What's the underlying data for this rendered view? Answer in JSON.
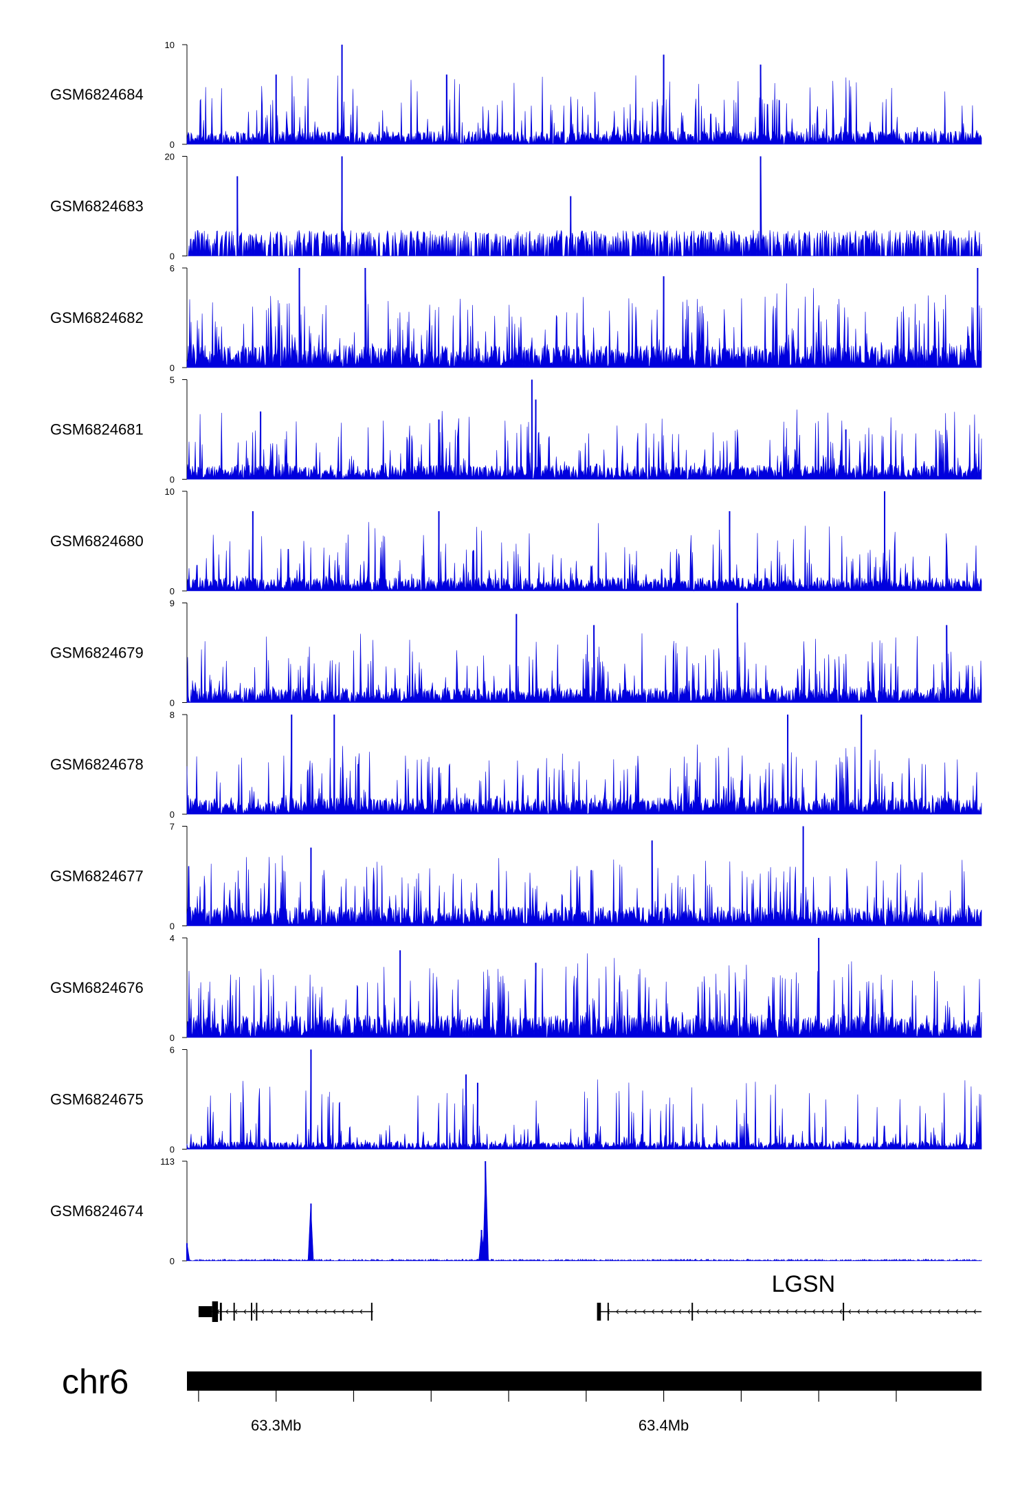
{
  "chart_data": {
    "type": "area",
    "chromosome": "chr6",
    "x_range_mb": [
      63.277,
      63.482
    ],
    "colors": {
      "signal": "#0000dd",
      "gene": "#000000",
      "ideogram": "#000000"
    },
    "tracks": [
      {
        "name": "GSM6824684",
        "ymax": 10,
        "baseline": 0,
        "background": 1.5,
        "peaks": [
          [
            63.3,
            7
          ],
          [
            63.317,
            10
          ],
          [
            63.4,
            9
          ],
          [
            63.425,
            8
          ],
          [
            63.344,
            7
          ]
        ]
      },
      {
        "name": "GSM6824683",
        "ymax": 20,
        "baseline": 0,
        "background": 4,
        "peaks": [
          [
            63.29,
            16
          ],
          [
            63.317,
            20
          ],
          [
            63.425,
            20
          ],
          [
            63.376,
            12
          ]
        ]
      },
      {
        "name": "GSM6824682",
        "ymax": 6,
        "baseline": 0,
        "background": 1.5,
        "peaks": [
          [
            63.306,
            6
          ],
          [
            63.323,
            6
          ],
          [
            63.4,
            5.5
          ],
          [
            63.481,
            6
          ]
        ]
      },
      {
        "name": "GSM6824681",
        "ymax": 5,
        "baseline": 0,
        "background": 0.8,
        "peaks": [
          [
            63.296,
            3.4
          ],
          [
            63.342,
            3
          ],
          [
            63.367,
            4
          ],
          [
            63.366,
            5
          ],
          [
            63.447,
            2.5
          ]
        ]
      },
      {
        "name": "GSM6824680",
        "ymax": 10,
        "baseline": 0,
        "background": 1.5,
        "peaks": [
          [
            63.294,
            8
          ],
          [
            63.342,
            8
          ],
          [
            63.417,
            8
          ],
          [
            63.457,
            10
          ]
        ]
      },
      {
        "name": "GSM6824679",
        "ymax": 9,
        "baseline": 0,
        "background": 1.5,
        "peaks": [
          [
            63.362,
            8
          ],
          [
            63.419,
            9
          ],
          [
            63.382,
            7
          ],
          [
            63.473,
            7
          ]
        ]
      },
      {
        "name": "GSM6824678",
        "ymax": 8,
        "baseline": 0,
        "background": 1.5,
        "peaks": [
          [
            63.304,
            8
          ],
          [
            63.315,
            8
          ],
          [
            63.432,
            8
          ],
          [
            63.451,
            8
          ]
        ]
      },
      {
        "name": "GSM6824677",
        "ymax": 7,
        "baseline": 0,
        "background": 1.5,
        "peaks": [
          [
            63.309,
            5.5
          ],
          [
            63.397,
            6
          ],
          [
            63.436,
            7
          ]
        ]
      },
      {
        "name": "GSM6824676",
        "ymax": 4,
        "baseline": 0,
        "background": 1,
        "peaks": [
          [
            63.332,
            3.5
          ],
          [
            63.367,
            3
          ],
          [
            63.44,
            4
          ]
        ]
      },
      {
        "name": "GSM6824675",
        "ymax": 6,
        "baseline": 0,
        "background": 0.5,
        "peaks": [
          [
            63.309,
            6
          ],
          [
            63.349,
            4.5
          ],
          [
            63.352,
            4
          ]
        ]
      },
      {
        "name": "GSM6824674",
        "ymax": 113,
        "baseline": 0,
        "background": 1.5,
        "peaks": [
          [
            63.309,
            65
          ],
          [
            63.354,
            113
          ],
          [
            63.353,
            35
          ],
          [
            63.277,
            20
          ]
        ]
      }
    ],
    "genes": [
      {
        "strand": "-",
        "start_mb": 63.28,
        "end_mb": 63.325,
        "exons_mb": [
          [
            63.28,
            63.2835
          ],
          [
            63.2835,
            63.285
          ],
          [
            63.2855,
            63.286
          ],
          [
            63.289,
            63.2893
          ],
          [
            63.2935,
            63.2938
          ],
          [
            63.2948,
            63.2951
          ],
          [
            63.3245,
            63.3248
          ]
        ]
      },
      {
        "name": "LGSN",
        "strand": "-",
        "start_mb": 63.383,
        "end_mb": 63.482,
        "exons_mb": [
          [
            63.3828,
            63.3838
          ],
          [
            63.3855,
            63.3858
          ],
          [
            63.4072,
            63.4075
          ],
          [
            63.4462,
            63.4465
          ]
        ]
      }
    ],
    "ticks_mb": [
      63.28,
      63.3,
      63.32,
      63.34,
      63.36,
      63.38,
      63.4,
      63.42,
      63.44,
      63.46
    ],
    "tick_labels": [
      {
        "position_mb": 63.3,
        "label": "63.3Mb"
      },
      {
        "position_mb": 63.4,
        "label": "63.4Mb"
      }
    ]
  }
}
